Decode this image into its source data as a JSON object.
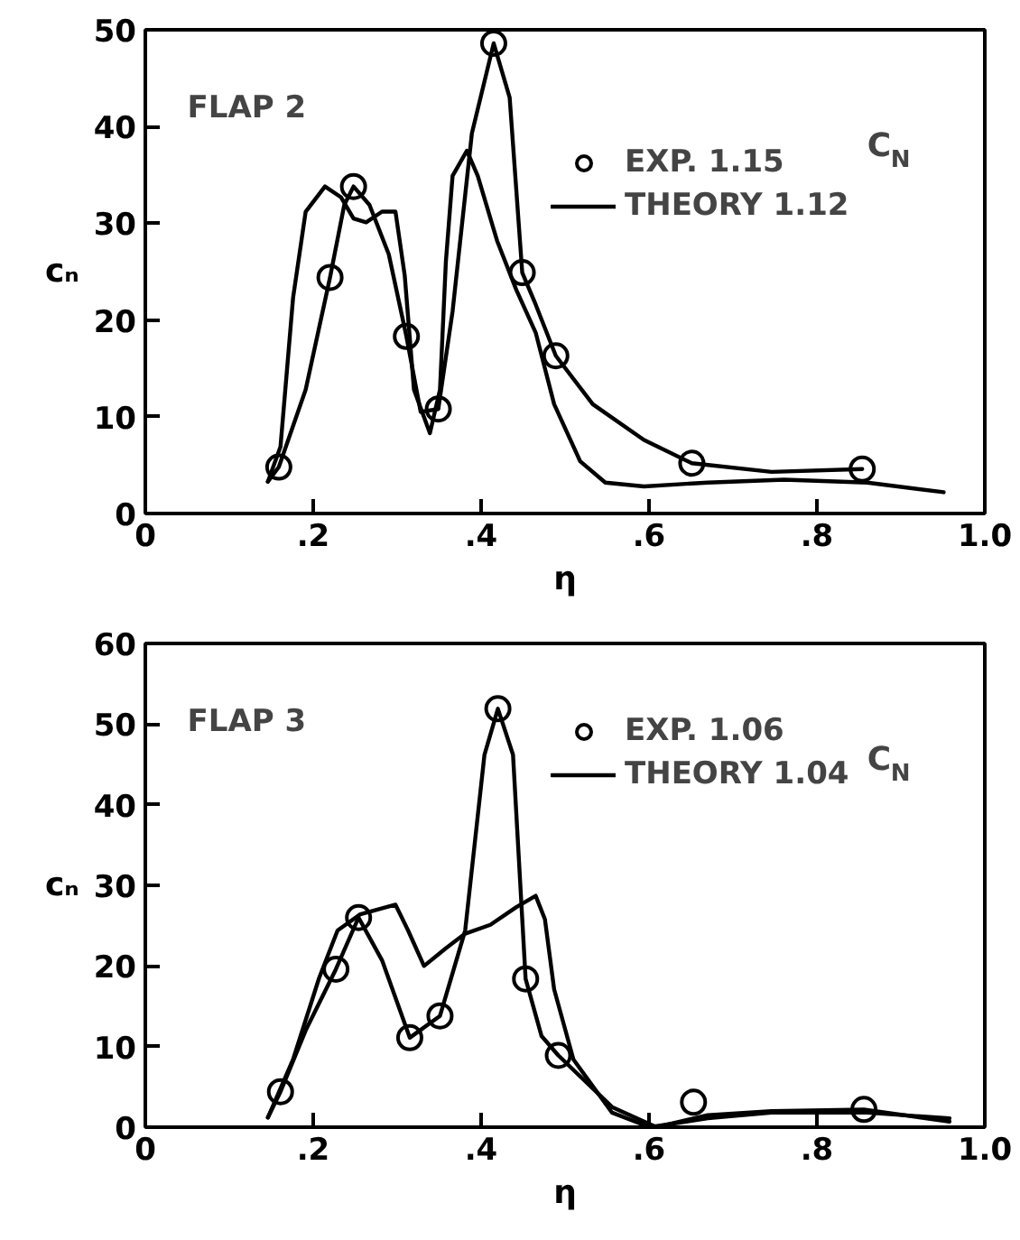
{
  "chart_data": [
    {
      "type": "line",
      "title": "FLAP 2",
      "xlabel": "η",
      "ylabel": "cₙ",
      "legend_title": "C$_{N}$",
      "xlim": [
        0,
        1.0
      ],
      "ylim": [
        0,
        50
      ],
      "xticks": [
        0,
        {
          "value": 0.2,
          "label": ".2"
        },
        {
          "value": 0.4,
          "label": ".4"
        },
        {
          "value": 0.6,
          "label": ".6"
        },
        {
          "value": 0.8,
          "label": ".8"
        },
        {
          "value": 1.0,
          "label": "1.0"
        }
      ],
      "yticks": [
        0,
        10,
        20,
        30,
        40,
        50
      ],
      "legend": "top right",
      "series": [
        {
          "type": "scatter",
          "name": "EXP. 1.15",
          "color": "#000000",
          "marker": "circle",
          "x": [
            0.159,
            0.22,
            0.248,
            0.311,
            0.349,
            0.415,
            0.449,
            0.489,
            0.651,
            0.854
          ],
          "values": [
            4.8,
            24.4,
            33.8,
            18.3,
            10.8,
            48.6,
            24.9,
            16.3,
            5.2,
            4.6
          ]
        },
        {
          "color": "#000000",
          "x": [
            0.146,
            0.159,
            0.191,
            0.22,
            0.237,
            0.248,
            0.267,
            0.29,
            0.311,
            0.328,
            0.349,
            0.366,
            0.389,
            0.415,
            0.434,
            0.449,
            0.465,
            0.489,
            0.533,
            0.594,
            0.651,
            0.746,
            0.854
          ],
          "values": [
            3.3,
            4.8,
            12.8,
            24.4,
            31.9,
            33.8,
            31.9,
            26.8,
            18.3,
            10.5,
            10.8,
            20.9,
            39.3,
            48.6,
            43,
            24.9,
            21.6,
            16.3,
            11.3,
            7.6,
            5.2,
            4.3,
            4.6
          ]
        },
        {
          "name": "THEORY 1.12",
          "color": "#000000",
          "x": [
            0.146,
            0.161,
            0.176,
            0.191,
            0.214,
            0.233,
            0.248,
            0.263,
            0.282,
            0.298,
            0.309,
            0.32,
            0.339,
            0.351,
            0.358,
            0.366,
            0.383,
            0.396,
            0.419,
            0.442,
            0.465,
            0.487,
            0.518,
            0.548,
            0.594,
            0.67,
            0.761,
            0.86,
            0.951
          ],
          "values": [
            3.3,
            6.9,
            22.3,
            31.2,
            33.8,
            32.7,
            30.5,
            30.1,
            31.2,
            31.2,
            24.6,
            12.8,
            8.3,
            12.8,
            26.0,
            34.9,
            37.5,
            34.9,
            28.2,
            23.1,
            18.7,
            11.3,
            5.4,
            3.2,
            2.8,
            3.2,
            3.5,
            3.2,
            2.2
          ]
        }
      ]
    },
    {
      "type": "line",
      "title": "FLAP 3",
      "xlabel": "η",
      "ylabel": "cₙ",
      "legend_title": "C$_{N}$",
      "xlim": [
        0,
        1.0
      ],
      "ylim": [
        0,
        60
      ],
      "xticks": [
        0,
        {
          "value": 0.2,
          "label": ".2"
        },
        {
          "value": 0.4,
          "label": ".4"
        },
        {
          "value": 0.6,
          "label": ".6"
        },
        {
          "value": 0.8,
          "label": ".8"
        },
        {
          "value": 1.0,
          "label": "1.0"
        }
      ],
      "yticks": [
        0,
        10,
        20,
        30,
        40,
        50,
        60
      ],
      "legend": "top right",
      "series": [
        {
          "type": "scatter",
          "name": "EXP. 1.06",
          "color": "#000000",
          "marker": "circle",
          "x": [
            0.161,
            0.227,
            0.254,
            0.315,
            0.351,
            0.42,
            0.453,
            0.492,
            0.653,
            0.856
          ],
          "values": [
            4.4,
            19.6,
            26.0,
            11.1,
            13.8,
            51.9,
            18.4,
            8.9,
            3.1,
            2.2
          ]
        },
        {
          "color": "#000000",
          "x": [
            0.146,
            0.161,
            0.191,
            0.227,
            0.254,
            0.282,
            0.315,
            0.351,
            0.381,
            0.404,
            0.42,
            0.438,
            0.453,
            0.472,
            0.492,
            0.556,
            0.609,
            0.67,
            0.746,
            0.856,
            0.958
          ],
          "values": [
            1.2,
            4.4,
            12,
            19.6,
            26.0,
            20.7,
            11.1,
            13.8,
            24.4,
            46.2,
            51.9,
            46.2,
            18.4,
            11.3,
            8.9,
            2.5,
            0,
            1.5,
            2.0,
            2.2,
            0.7
          ]
        },
        {
          "name": "THEORY 1.04",
          "color": "#000000",
          "x": [
            0.146,
            0.176,
            0.207,
            0.229,
            0.256,
            0.298,
            0.313,
            0.332,
            0.358,
            0.381,
            0.411,
            0.442,
            0.465,
            0.476,
            0.487,
            0.51,
            0.556,
            0.601,
            0.67,
            0.746,
            0.86,
            0.958
          ],
          "values": [
            1.2,
            8.4,
            18.5,
            24.4,
            26.4,
            27.6,
            24.4,
            20.0,
            22.2,
            24.0,
            25.1,
            27.3,
            28.7,
            25.8,
            17.1,
            8.4,
            1.8,
            0,
            1.1,
            1.8,
            1.8,
            1.1
          ]
        }
      ]
    }
  ]
}
